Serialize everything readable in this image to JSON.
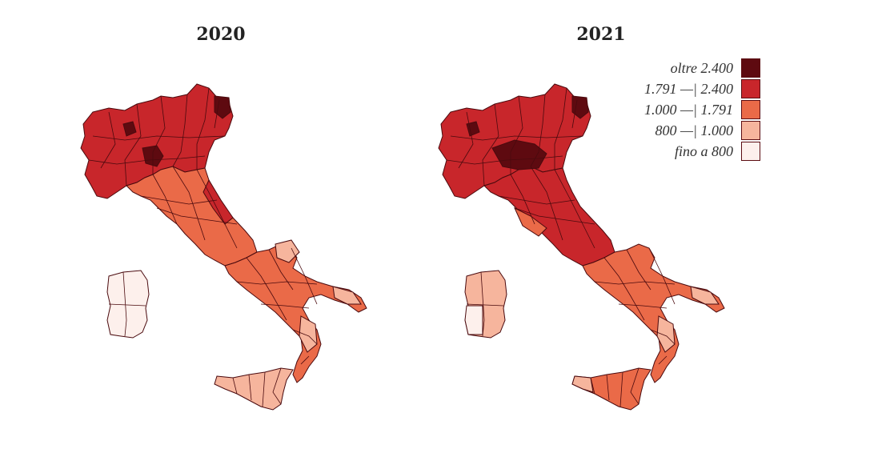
{
  "maps": [
    {
      "title": "2020"
    },
    {
      "title": "2021"
    }
  ],
  "legend": [
    {
      "label": "oltre 2.400",
      "color": "#5e0a10"
    },
    {
      "label": "1.791 —| 2.400",
      "color": "#c8262b"
    },
    {
      "label": "1.000 —| 1.791",
      "color": "#ea6a48"
    },
    {
      "label": "800 —| 1.000",
      "color": "#f6b59d"
    },
    {
      "label": "fino a 800",
      "color": "#fdf0ec"
    }
  ],
  "regions": {
    "2020": {
      "north": "1.791 —| 2.400",
      "center": "1.000 —| 1.791",
      "south": "1.000 —| 1.791",
      "sicily": "800 —| 1.000",
      "sardinia": "fino a 800"
    },
    "2021": {
      "north": "1.791 —| 2.400",
      "center": "1.791 —| 2.400",
      "south": "1.000 —| 1.791",
      "sicily": "1.000 —| 1.791",
      "sardinia": "800 —| 1.000"
    }
  }
}
